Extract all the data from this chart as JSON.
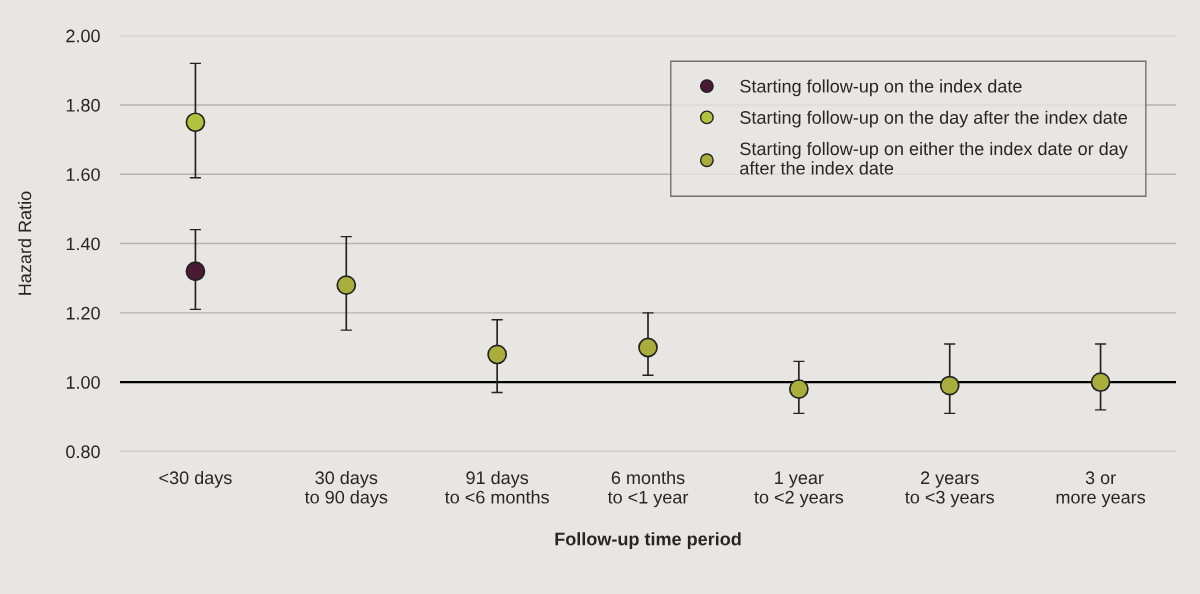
{
  "chart_data": {
    "type": "scatter",
    "xlabel": "Follow-up time period",
    "ylabel": "Hazard Ratio",
    "categories": [
      "<30 days",
      "30 days\nto 90 days",
      "91 days\nto <6 months",
      "6 months\nto <1 year",
      "1 year\nto <2 years",
      "2 years\nto <3 years",
      "3 or\nmore years"
    ],
    "series": [
      {
        "name": "Starting follow-up on the index date",
        "color": "#4a1a35",
        "values": [
          1.32,
          null,
          null,
          null,
          null,
          null,
          null
        ],
        "errors": [
          [
            1.21,
            1.44
          ],
          null,
          null,
          null,
          null,
          null,
          null
        ]
      },
      {
        "name": "Starting follow-up on the day after the index date",
        "color": "#b3c23c",
        "values": [
          1.75,
          null,
          null,
          null,
          null,
          null,
          null
        ],
        "errors": [
          [
            1.59,
            1.92
          ],
          null,
          null,
          null,
          null,
          null,
          null
        ]
      },
      {
        "name": "Starting follow-up on either the index date or day\nafter the index date",
        "color": "#a9ad3c",
        "values": [
          null,
          1.28,
          1.08,
          1.1,
          0.98,
          0.99,
          1.0
        ],
        "errors": [
          null,
          [
            1.15,
            1.42
          ],
          [
            0.97,
            1.18
          ],
          [
            1.02,
            1.2
          ],
          [
            0.91,
            1.06
          ],
          [
            0.91,
            1.11
          ],
          [
            0.92,
            1.11
          ]
        ]
      }
    ],
    "ylim": [
      0.8,
      2.0
    ],
    "yticks": [
      {
        "value": 0.8,
        "label": "0.80"
      },
      {
        "value": 1.0,
        "label": "1.00"
      },
      {
        "value": 1.2,
        "label": "1.20"
      },
      {
        "value": 1.4,
        "label": "1.40"
      },
      {
        "value": 1.6,
        "label": "1.60"
      },
      {
        "value": 1.8,
        "label": "1.80"
      },
      {
        "value": 2.0,
        "label": "2.00"
      }
    ],
    "ref_lines": [
      {
        "axis": "y",
        "value": 1.0,
        "color": "#000000"
      }
    ],
    "grid": "y",
    "legend": "top right",
    "marker": "circle"
  }
}
